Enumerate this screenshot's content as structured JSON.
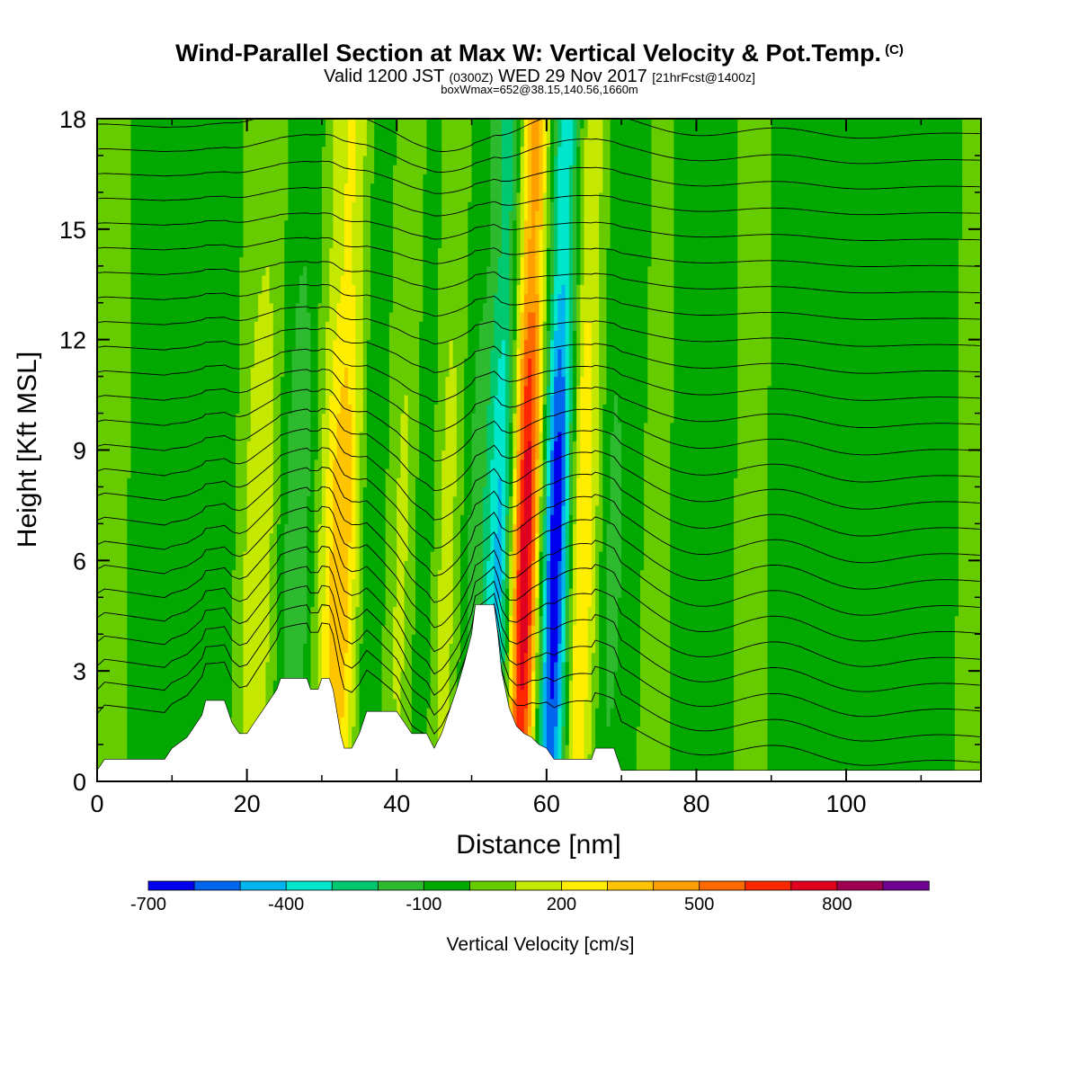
{
  "header": {
    "title": "Wind-Parallel Section at Max W: Vertical Velocity & Pot.Temp.",
    "copyright": "(C)",
    "valid_prefix": "Valid 1200 JST",
    "valid_utc": "(0300Z)",
    "valid_date": "WED 29 Nov 2017",
    "forecast": "[21hrFcst@1400z]",
    "box_info": "boxWmax=652@38.15,140.56,1660m"
  },
  "chart_data": {
    "type": "heatmap",
    "xlabel": "Distance [nm]",
    "ylabel": "Height [Kft MSL]",
    "xlim": [
      0,
      118
    ],
    "ylim": [
      0,
      18
    ],
    "x_ticks": [
      0,
      20,
      40,
      60,
      80,
      100
    ],
    "y_ticks": [
      0,
      3,
      6,
      9,
      12,
      15,
      18
    ],
    "colorbar": {
      "title": "Vertical Velocity [cm/s]",
      "tick_values": [
        -700,
        -400,
        -100,
        200,
        500,
        800
      ],
      "tick_labels": [
        "-700",
        "-400",
        "-100",
        "200",
        "500",
        "800"
      ],
      "levels": [
        -700,
        -600,
        -500,
        -400,
        -300,
        -200,
        -100,
        0,
        100,
        200,
        300,
        400,
        500,
        600,
        700,
        800,
        900
      ],
      "colors": [
        "#0000ee",
        "#0066ee",
        "#00b4ee",
        "#00e6cc",
        "#00c870",
        "#2eba2e",
        "#00a800",
        "#66cc00",
        "#c4e800",
        "#ffee00",
        "#ffc400",
        "#ffa000",
        "#ff6a00",
        "#ff2800",
        "#e00020",
        "#a00050",
        "#700090"
      ]
    },
    "bands": [
      {
        "x": 0,
        "w": 20
      },
      {
        "x": 7,
        "w": -10
      },
      {
        "x": 17,
        "w": -60
      },
      {
        "x": 22,
        "w": 180
      },
      {
        "x": 27,
        "w": -180
      },
      {
        "x": 33,
        "w": 380
      },
      {
        "x": 37,
        "w": -90
      },
      {
        "x": 41,
        "w": 120
      },
      {
        "x": 44,
        "w": -60
      },
      {
        "x": 47,
        "w": 140
      },
      {
        "x": 51,
        "w": -150
      },
      {
        "x": 54,
        "w": -420
      },
      {
        "x": 57.5,
        "w": 780
      },
      {
        "x": 61.5,
        "w": -680
      },
      {
        "x": 65,
        "w": 300
      },
      {
        "x": 69,
        "w": -120
      },
      {
        "x": 74,
        "w": 10
      },
      {
        "x": 81,
        "w": -20
      },
      {
        "x": 88,
        "w": 10
      },
      {
        "x": 95,
        "w": -60
      },
      {
        "x": 104,
        "w": -90
      },
      {
        "x": 111,
        "w": -30
      },
      {
        "x": 118,
        "w": 20
      }
    ],
    "terrain": [
      [
        0,
        0.3
      ],
      [
        1,
        0.6
      ],
      [
        9,
        0.6
      ],
      [
        10,
        0.9
      ],
      [
        12,
        1.2
      ],
      [
        13,
        1.5
      ],
      [
        14,
        1.8
      ],
      [
        14.5,
        2.2
      ],
      [
        17,
        2.2
      ],
      [
        17.5,
        1.9
      ],
      [
        18,
        1.6
      ],
      [
        19,
        1.3
      ],
      [
        20,
        1.3
      ],
      [
        21,
        1.6
      ],
      [
        22,
        1.9
      ],
      [
        23,
        2.2
      ],
      [
        24,
        2.5
      ],
      [
        24.5,
        2.8
      ],
      [
        28,
        2.8
      ],
      [
        28.5,
        2.5
      ],
      [
        29.5,
        2.5
      ],
      [
        30,
        2.8
      ],
      [
        31,
        2.8
      ],
      [
        31.5,
        2.5
      ],
      [
        32,
        1.9
      ],
      [
        32.5,
        1.3
      ],
      [
        33,
        0.9
      ],
      [
        34,
        0.9
      ],
      [
        35,
        1.3
      ],
      [
        36,
        1.9
      ],
      [
        38,
        1.9
      ],
      [
        40,
        1.9
      ],
      [
        41,
        1.6
      ],
      [
        42,
        1.3
      ],
      [
        44,
        1.3
      ],
      [
        45,
        0.9
      ],
      [
        46,
        1.3
      ],
      [
        47,
        1.9
      ],
      [
        48,
        2.5
      ],
      [
        49,
        3.2
      ],
      [
        50,
        4.0
      ],
      [
        50.5,
        4.8
      ],
      [
        53,
        4.8
      ],
      [
        53.5,
        4.0
      ],
      [
        54,
        3.0
      ],
      [
        55,
        2.0
      ],
      [
        56,
        1.5
      ],
      [
        57,
        1.3
      ],
      [
        58,
        1.2
      ],
      [
        59,
        1.0
      ],
      [
        60,
        0.9
      ],
      [
        61,
        0.6
      ],
      [
        66,
        0.6
      ],
      [
        66.5,
        0.9
      ],
      [
        69,
        0.9
      ],
      [
        69.5,
        0.6
      ],
      [
        70,
        0.3
      ],
      [
        116,
        0.3
      ],
      [
        118,
        0.3
      ]
    ],
    "theta_contours": [
      {
        "level": 14,
        "base": 0.9
      },
      {
        "level": 15,
        "base": 1.6
      },
      {
        "level": 16,
        "base": 2.3
      },
      {
        "level": 17,
        "base": 3.0
      },
      {
        "level": 18,
        "base": 3.7
      },
      {
        "level": 19,
        "base": 4.4
      },
      {
        "level": 20,
        "base": 5.1
      },
      {
        "level": 21,
        "base": 5.8
      },
      {
        "level": 22,
        "base": 6.5
      },
      {
        "level": 23,
        "base": 7.2
      },
      {
        "level": 24,
        "base": 7.9
      },
      {
        "level": 25,
        "base": 8.6
      },
      {
        "level": 26,
        "base": 9.3
      },
      {
        "level": 27,
        "base": 10.0
      },
      {
        "level": 28,
        "base": 10.7
      },
      {
        "level": 29,
        "base": 11.4
      },
      {
        "level": 30,
        "base": 12.1
      },
      {
        "level": 31,
        "base": 12.8
      },
      {
        "level": 32,
        "base": 13.5
      },
      {
        "level": 33,
        "base": 14.2
      },
      {
        "level": 34,
        "base": 14.9
      },
      {
        "level": 35,
        "base": 15.6
      },
      {
        "level": 36,
        "base": 16.3
      },
      {
        "level": 37,
        "base": 17.0
      },
      {
        "level": 38,
        "base": 17.7
      }
    ]
  }
}
